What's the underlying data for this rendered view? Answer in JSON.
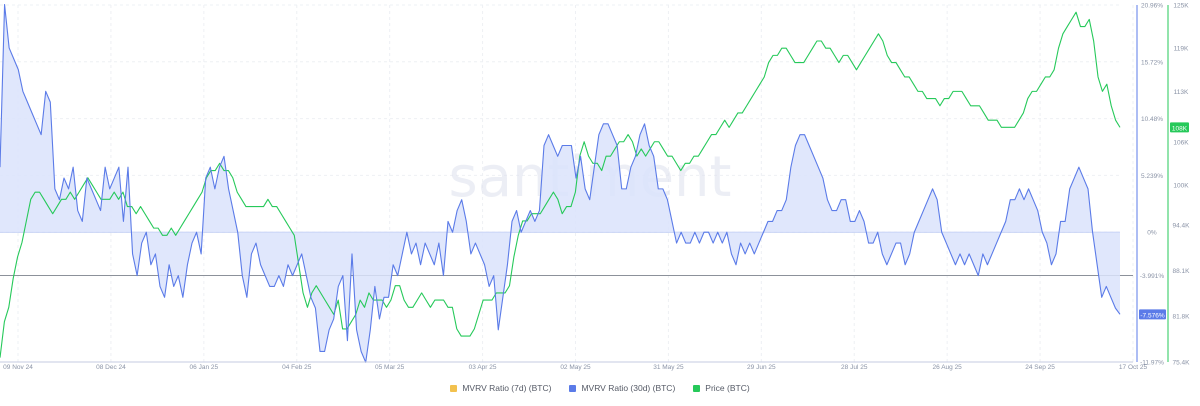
{
  "colors": {
    "mvrv7": "#f2c14e",
    "mvrv30": "#5b7be8",
    "mvrv30_fill": "#dbe3fb",
    "price": "#26c95a",
    "grid": "#eef0f4",
    "axis_text": "#8a93a6"
  },
  "watermark": "santiment",
  "legend": [
    {
      "label": "MVRV Ratio (7d) (BTC)",
      "color": "#f2c14e"
    },
    {
      "label": "MVRV Ratio (30d) (BTC)",
      "color": "#5b7be8"
    },
    {
      "label": "Price (BTC)",
      "color": "#26c95a"
    }
  ],
  "chart_data": {
    "type": "line",
    "x_ticks": [
      "09 Nov 24",
      "08 Dec 24",
      "06 Jan 25",
      "04 Feb 25",
      "05 Mar 25",
      "03 Apr 25",
      "02 May 25",
      "31 May 25",
      "29 Jun 25",
      "28 Jul 25",
      "26 Aug 25",
      "24 Sep 25",
      "17 Oct 25"
    ],
    "mvrv_axis": {
      "ticks": [
        "20.96%",
        "15.72%",
        "10.48%",
        "5.239%",
        "0%",
        "-3.991%",
        "-11.97%"
      ],
      "range": [
        -11.97,
        20.96
      ],
      "last_value": "-7.576%",
      "reference_line": -3.991
    },
    "price_axis": {
      "ticks": [
        "125K",
        "119K",
        "113K",
        "106K",
        "100K",
        "94.4K",
        "88.1K",
        "81.8K",
        "75.4K"
      ],
      "range": [
        75.4,
        125
      ],
      "last_value": "108K"
    },
    "series": [
      {
        "name": "MVRV Ratio (7d) (BTC)",
        "values": []
      },
      {
        "name": "MVRV Ratio (30d) (BTC)",
        "values": [
          6,
          21,
          17,
          16,
          15,
          13,
          12,
          11,
          10,
          9,
          13,
          12,
          4,
          3,
          5,
          4,
          6,
          2,
          1,
          5,
          4,
          3,
          2,
          6,
          4,
          5,
          6,
          1,
          6,
          -2,
          -4,
          -1,
          0,
          -3,
          -2,
          -5,
          -6,
          -3,
          -5,
          -4,
          -6,
          -3,
          -1,
          0,
          -2,
          5,
          6,
          4,
          6,
          7,
          4,
          2,
          0,
          -4,
          -6,
          -2,
          -1,
          -3,
          -4,
          -5,
          -5,
          -4,
          -5,
          -3,
          -4,
          -3,
          -2,
          -4,
          -6,
          -7,
          -11,
          -11,
          -9,
          -8,
          -5,
          -4,
          -10,
          -2,
          -9,
          -11,
          -12,
          -9,
          -5,
          -8,
          -6,
          -6,
          -3,
          -4,
          -2,
          0,
          -2,
          -1,
          -3,
          -1,
          -2,
          -3,
          -1,
          -4,
          1,
          0,
          2,
          3,
          1,
          -2,
          -1,
          -2,
          -3,
          -5,
          -4,
          -9,
          -6,
          -3,
          1,
          2,
          0,
          1,
          2,
          1,
          2,
          8,
          9,
          8,
          7,
          8,
          8,
          8,
          5,
          7,
          4,
          3,
          6,
          9,
          10,
          10,
          9,
          8,
          4,
          4,
          6,
          7,
          9,
          10,
          8,
          7,
          4,
          4,
          3,
          1,
          -1,
          0,
          -1,
          -1,
          0,
          -1,
          0,
          0,
          -1,
          0,
          -1,
          0,
          -2,
          -3,
          -1,
          -2,
          -1,
          -2,
          -1,
          0,
          1,
          1,
          2,
          2,
          3,
          6,
          8,
          9,
          9,
          8,
          7,
          6,
          5,
          3,
          2,
          2,
          3,
          3,
          1,
          1,
          2,
          1,
          -1,
          -1,
          0,
          -2,
          -3,
          -2,
          -1,
          -1,
          -3,
          -2,
          0,
          1,
          2,
          3,
          4,
          3,
          0,
          -1,
          -2,
          -3,
          -2,
          -3,
          -2,
          -3,
          -4,
          -2,
          -3,
          -2,
          -1,
          0,
          1,
          3,
          3,
          4,
          3,
          4,
          3,
          2,
          0,
          -1,
          -3,
          -2,
          1,
          1,
          4,
          5,
          6,
          5,
          4,
          0,
          -3,
          -6,
          -5,
          -6,
          -7,
          -7.576
        ]
      },
      {
        "name": "Price (BTC)",
        "values": [
          76,
          81,
          83,
          87,
          90,
          92,
          95,
          98,
          99,
          99,
          98,
          97,
          96,
          97,
          98,
          98,
          99,
          98,
          99,
          100,
          101,
          100,
          99,
          98,
          98,
          98,
          99,
          98,
          99,
          97,
          97,
          96,
          97,
          96,
          95,
          94,
          94,
          93,
          93,
          94,
          93,
          94,
          95,
          96,
          97,
          98,
          99,
          101,
          102,
          102,
          103,
          102,
          102,
          101,
          99,
          98,
          97,
          97,
          97,
          97,
          97,
          98,
          97,
          97,
          96,
          95,
          94,
          93,
          89,
          85,
          83,
          85,
          86,
          85,
          84,
          83,
          82,
          84,
          80,
          80,
          81,
          82,
          84,
          83,
          85,
          84,
          84,
          84,
          83,
          84,
          86,
          86,
          84,
          83,
          83,
          84,
          85,
          84,
          83,
          84,
          84,
          84,
          83,
          83,
          80,
          79,
          79,
          79,
          80,
          82,
          84,
          84,
          84,
          85,
          85,
          85,
          86,
          90,
          93,
          95,
          95,
          96,
          96,
          96,
          97,
          98,
          99,
          98,
          96,
          97,
          97,
          99,
          104,
          106,
          104,
          103,
          103,
          102,
          104,
          104,
          105,
          106,
          106,
          107,
          106,
          104,
          105,
          104,
          105,
          106,
          106,
          105,
          104,
          104,
          103,
          102,
          103,
          103,
          104,
          104,
          105,
          106,
          107,
          107,
          108,
          109,
          108,
          109,
          110,
          110,
          111,
          112,
          113,
          114,
          115,
          117,
          118,
          118,
          119,
          119,
          118,
          117,
          117,
          117,
          118,
          119,
          120,
          120,
          119,
          119,
          118,
          117,
          118,
          118,
          117,
          116,
          117,
          118,
          119,
          120,
          121,
          120,
          118,
          117,
          117,
          116,
          115,
          115,
          114,
          113,
          113,
          112,
          112,
          112,
          111,
          112,
          112,
          113,
          113,
          113,
          112,
          111,
          111,
          111,
          110,
          109,
          109,
          109,
          108,
          108,
          108,
          108,
          109,
          110,
          112,
          113,
          113,
          114,
          115,
          115,
          116,
          119,
          121,
          122,
          123,
          124,
          122,
          122,
          123,
          120,
          115,
          113,
          114,
          111,
          109,
          108
        ]
      }
    ],
    "xlabel": "",
    "ylabel": ""
  }
}
